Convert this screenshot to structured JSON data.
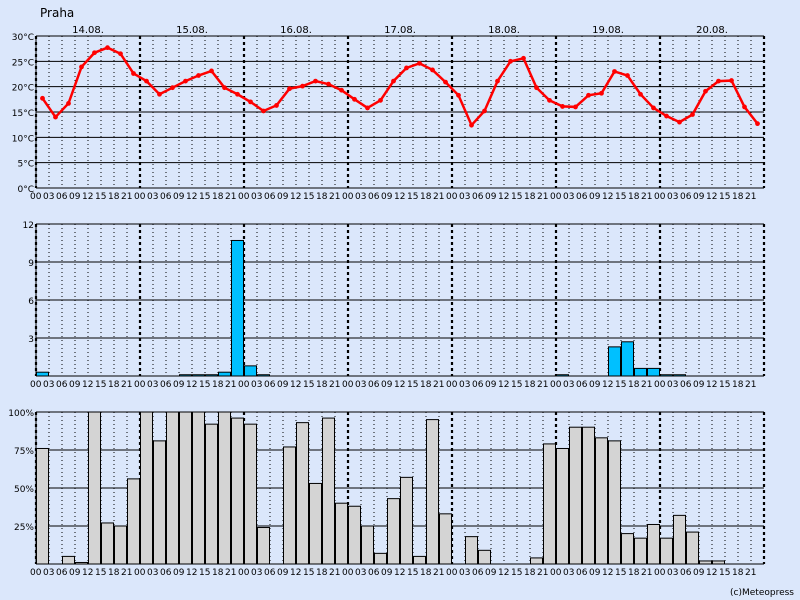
{
  "page": {
    "location": "Praha",
    "credit": "(c)Meteopress"
  },
  "chart_data": [
    {
      "type": "line",
      "name": "temperature",
      "ylim": [
        0,
        30
      ],
      "yticks": [
        0,
        5,
        10,
        15,
        20,
        25,
        30
      ],
      "ytick_labels": [
        "0°C",
        "5°C",
        "10°C",
        "15°C",
        "20°C",
        "25°C",
        "30°C"
      ],
      "day_labels": [
        "14.08.",
        "15.08.",
        "16.08.",
        "17.08.",
        "18.08.",
        "19.08.",
        "20.08."
      ],
      "hour_labels": [
        "00",
        "03",
        "06",
        "09",
        "12",
        "15",
        "18",
        "21"
      ],
      "color": "#ff0000",
      "values": [
        17.7,
        14.0,
        16.7,
        23.9,
        26.7,
        27.7,
        26.5,
        22.6,
        21.1,
        18.5,
        19.8,
        21.1,
        22.2,
        23.1,
        19.8,
        18.5,
        17.0,
        15.2,
        16.3,
        19.6,
        20.1,
        21.1,
        20.5,
        19.3,
        17.5,
        15.8,
        17.3,
        21.1,
        23.7,
        24.6,
        23.3,
        20.9,
        18.3,
        12.4,
        15.2,
        21.1,
        25.0,
        25.6,
        19.8,
        17.3,
        16.1,
        16.0,
        18.3,
        18.7,
        23.0,
        22.2,
        18.5,
        15.8,
        14.2,
        13.0,
        14.5,
        19.1,
        21.1,
        21.2,
        16.0,
        12.7
      ]
    },
    {
      "type": "bar",
      "name": "precipitation",
      "ylim": [
        0,
        12
      ],
      "yticks": [
        3,
        6,
        9,
        12
      ],
      "ytick_labels": [
        "3",
        "6",
        "9",
        "12"
      ],
      "color": "#00c0ff",
      "values": [
        0.3,
        0,
        0,
        0,
        0,
        0,
        0,
        0,
        0,
        0,
        0,
        0.1,
        0.1,
        0.1,
        0.3,
        10.7,
        0.8,
        0.1,
        0,
        0,
        0,
        0,
        0,
        0,
        0,
        0,
        0,
        0,
        0,
        0,
        0,
        0,
        0,
        0,
        0,
        0,
        0,
        0,
        0,
        0,
        0.1,
        0,
        0,
        0,
        2.3,
        2.7,
        0.6,
        0.6,
        0.1,
        0.1,
        0,
        0,
        0,
        0,
        0,
        0
      ]
    },
    {
      "type": "bar",
      "name": "cloudiness",
      "ylim": [
        0,
        100
      ],
      "yticks": [
        25,
        50,
        75,
        100
      ],
      "ytick_labels": [
        "25%",
        "50%",
        "75%",
        "100%"
      ],
      "color": "#d4d4d4",
      "values": [
        76,
        0,
        5,
        1,
        100,
        27,
        25,
        56,
        100,
        81,
        100,
        100,
        100,
        92,
        100,
        96,
        92,
        24,
        0,
        77,
        93,
        53,
        96,
        40,
        38,
        25,
        7,
        43,
        57,
        5,
        95,
        33,
        0,
        18,
        9,
        0,
        0,
        0,
        4,
        79,
        76,
        90,
        90,
        83,
        81,
        20,
        17,
        26,
        17,
        32,
        21,
        2,
        2,
        0,
        0,
        0
      ]
    }
  ]
}
